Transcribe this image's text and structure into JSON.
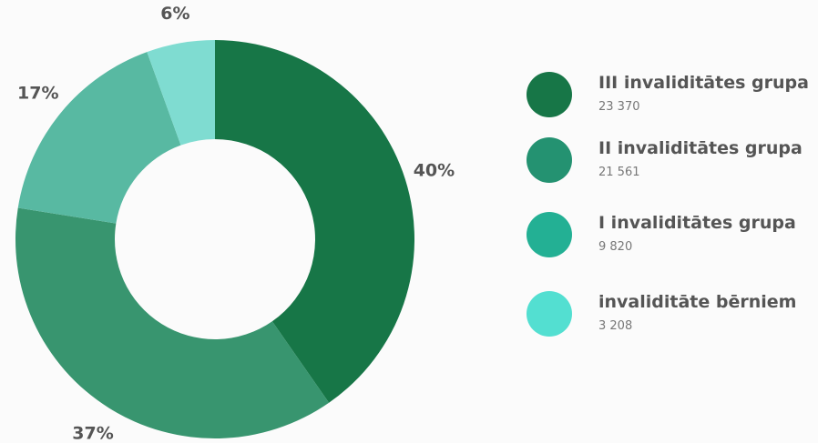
{
  "chart_data": {
    "type": "pie",
    "variant": "donut",
    "categories": [
      "III invaliditātes grupa",
      "II invaliditātes grupa",
      "I invaliditātes grupa",
      "invaliditāte bērniem"
    ],
    "values": [
      23370,
      21561,
      9820,
      3208
    ],
    "value_labels": [
      "23 370",
      "21 561",
      "9 820",
      "3 208"
    ],
    "percent_labels": [
      "40%",
      "37%",
      "17%",
      "6%"
    ],
    "colors": [
      "#177647",
      "#38956f",
      "#58b9a2",
      "#7fdcd1"
    ],
    "legend_colors": [
      "#177647",
      "#249271",
      "#23b094",
      "#53dfd1"
    ],
    "legend_position": "right"
  }
}
